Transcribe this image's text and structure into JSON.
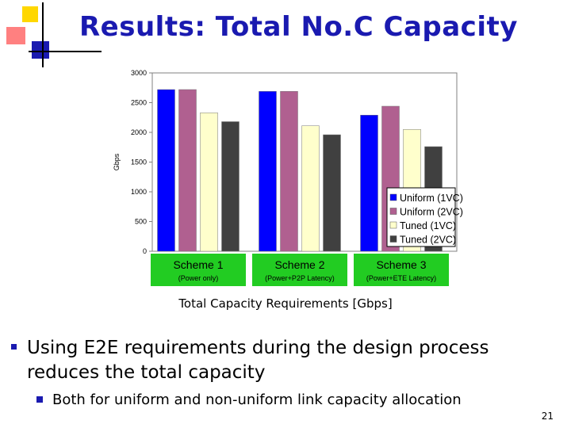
{
  "slide": {
    "title": "Results: Total No.C Capacity",
    "caption": "Total Capacity Requirements [Gbps]",
    "bullets": [
      "Using E2E requirements during the design process reduces the total capacity"
    ],
    "subbullets": [
      "Both for uniform and non-uniform link capacity allocation"
    ],
    "page_number": "21"
  },
  "colors": {
    "title": "#1a1ab0",
    "scheme_label_bg": "#22cc22",
    "series": [
      "#0000ff",
      "#b06090",
      "#ffffcc",
      "#404040"
    ]
  },
  "chart_data": {
    "type": "bar",
    "categories": [
      "Scheme 1",
      "Scheme 2",
      "Scheme 3"
    ],
    "category_sublabels": [
      "(Power only)",
      "(Power+P2P Latency)",
      "(Power+ETE Latency)"
    ],
    "series": [
      {
        "name": "Uniform (1VC)",
        "values": [
          2720,
          2690,
          2290
        ]
      },
      {
        "name": "Uniform (2VC)",
        "values": [
          2720,
          2690,
          2440
        ]
      },
      {
        "name": "Tuned (1VC)",
        "values": [
          2330,
          2110,
          2050
        ]
      },
      {
        "name": "Tuned (2VC)",
        "values": [
          2180,
          1960,
          1760
        ]
      }
    ],
    "ylabel": "Gbps",
    "ylim": [
      0,
      3000
    ],
    "yticks": [
      0,
      500,
      1000,
      1500,
      2000,
      2500,
      3000
    ],
    "grid": false,
    "legend": "bottom-right inside plot"
  }
}
